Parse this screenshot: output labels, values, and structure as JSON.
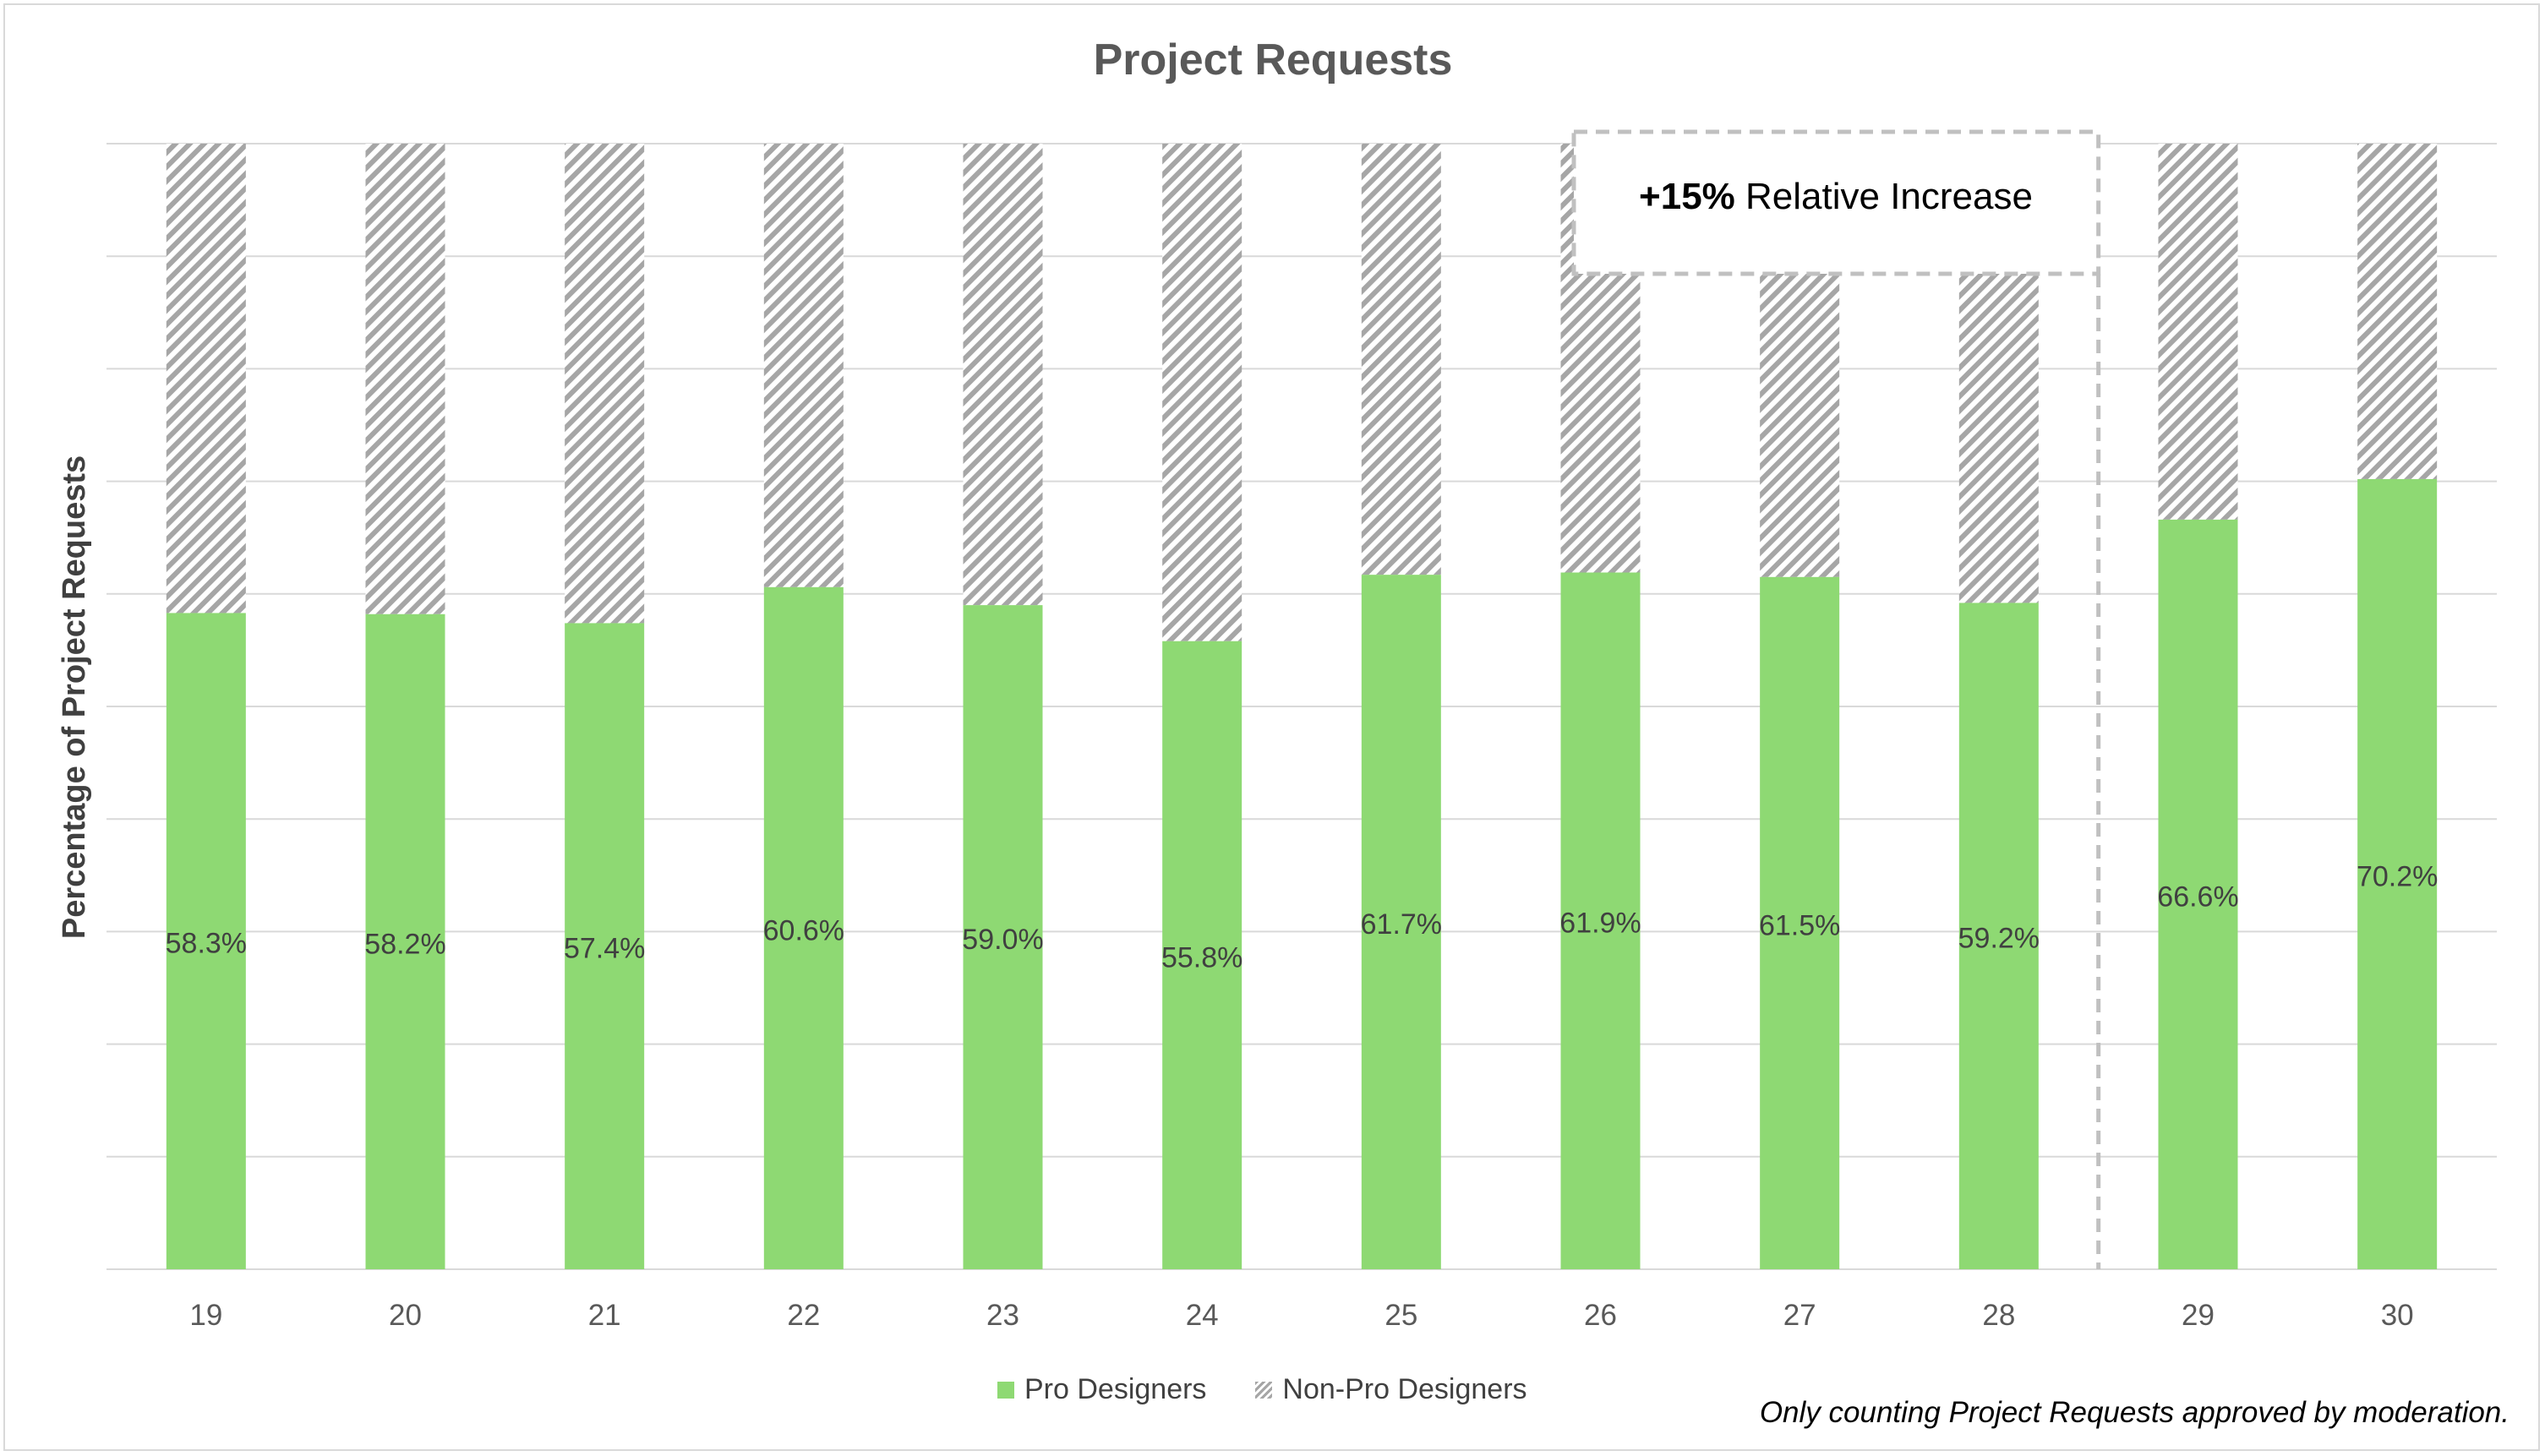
{
  "chart_data": {
    "type": "bar",
    "stacked": true,
    "percent_stacked": true,
    "title": "Project Requests",
    "xlabel": "",
    "ylabel": "Percentage of Project Requests",
    "ylim": [
      0,
      100
    ],
    "grid": true,
    "legend_position": "bottom",
    "categories": [
      "19",
      "20",
      "21",
      "22",
      "23",
      "24",
      "25",
      "26",
      "27",
      "28",
      "29",
      "30"
    ],
    "series": [
      {
        "name": "Pro Designers",
        "color": "#8ed973",
        "values": [
          58.3,
          58.2,
          57.4,
          60.6,
          59.0,
          55.8,
          61.7,
          61.9,
          61.5,
          59.2,
          66.6,
          70.2
        ],
        "labels": [
          "58.3%",
          "58.2%",
          "57.4%",
          "60.6%",
          "59.0%",
          "55.8%",
          "61.7%",
          "61.9%",
          "61.5%",
          "59.2%",
          "66.6%",
          "70.2%"
        ]
      },
      {
        "name": "Non-Pro Designers",
        "color": "#a6a6a6",
        "pattern": "diagonal-stripes",
        "values": [
          41.7,
          41.8,
          42.6,
          39.4,
          41.0,
          44.2,
          38.3,
          38.1,
          38.5,
          40.8,
          33.4,
          29.8
        ]
      }
    ],
    "annotation": {
      "bold_text": "+15%",
      "text": " Relative Increase",
      "divider_between": [
        "28",
        "29"
      ]
    },
    "footnote": "Only counting Project Requests approved by moderation."
  }
}
